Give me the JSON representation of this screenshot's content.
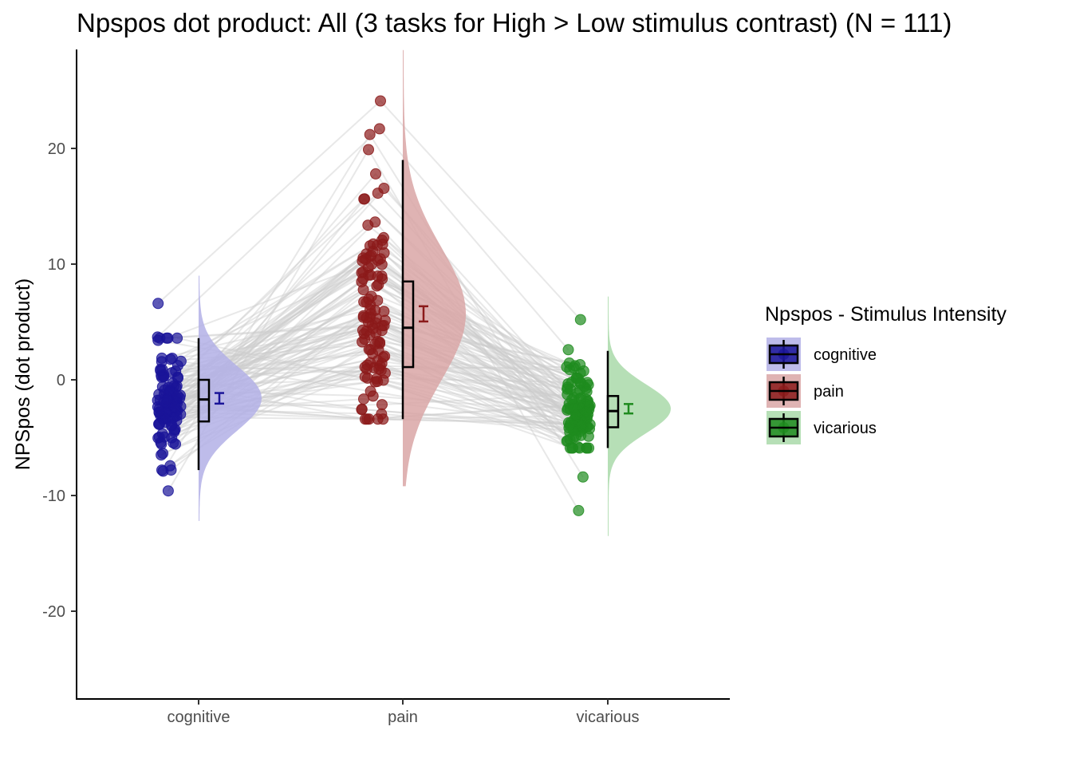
{
  "chart_data": {
    "type": "raincloud",
    "title": "Npspos dot product: All (3 tasks for High > Low stimulus contrast) (N = 111)",
    "xlabel": "",
    "ylabel": "NPSpos  (dot product)",
    "ylim": [
      -27.5,
      28.5
    ],
    "yticks": [
      -20,
      -10,
      0,
      10,
      20
    ],
    "categories": [
      "cognitive",
      "pain",
      "vicarious"
    ],
    "legend": {
      "title": "Npspos - Stimulus Intensity",
      "position": "right",
      "items": [
        "cognitive",
        "pain",
        "vicarious"
      ]
    },
    "colors": {
      "cognitive": "#1a1499",
      "pain": "#8b1a1a",
      "vicarious": "#1e8b1e",
      "cognitive_fill": "#b3b0e6",
      "pain_fill": "#d9a6a6",
      "vicarious_fill": "#a9d9a9",
      "connector": "#cccccc"
    },
    "series": [
      {
        "name": "cognitive",
        "box": {
          "min": -7.8,
          "q1": -3.6,
          "median": -1.7,
          "q3": 0.0,
          "max": 3.6
        },
        "mean": -1.6,
        "se": 0.32,
        "density_range": [
          -12.2,
          9.0
        ],
        "outliers": [
          6.6,
          3.7,
          -7.9,
          -9.6
        ]
      },
      {
        "name": "pain",
        "box": {
          "min": -3.4,
          "q1": 1.1,
          "median": 4.5,
          "q3": 8.5,
          "max": 19.0
        },
        "mean": 5.7,
        "se": 0.52,
        "density_range": [
          -9.2,
          28.5
        ],
        "outliers": [
          24.1,
          21.7,
          21.2,
          19.9
        ]
      },
      {
        "name": "vicarious",
        "box": {
          "min": -5.9,
          "q1": -4.1,
          "median": -2.7,
          "q3": -1.4,
          "max": 2.5
        },
        "mean": -2.5,
        "se": 0.27,
        "density_range": [
          -13.5,
          7.2
        ],
        "outliers": [
          5.2,
          2.6,
          -8.4,
          -11.3
        ]
      }
    ]
  }
}
